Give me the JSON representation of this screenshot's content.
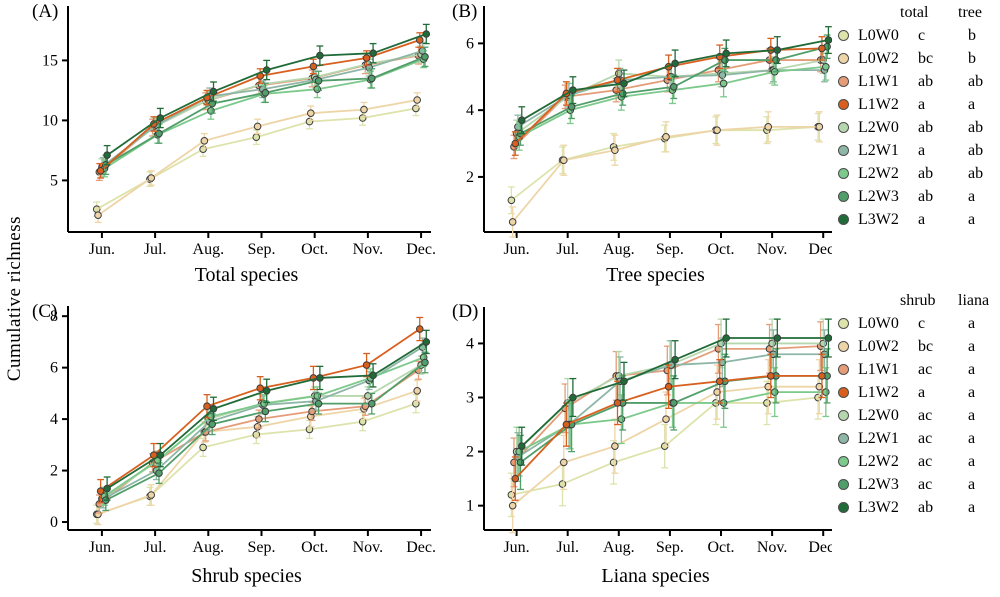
{
  "figure": {
    "y_axis_label": "Cumulative richness",
    "months": [
      "Jun.",
      "Jul.",
      "Aug.",
      "Sep.",
      "Oct.",
      "Nov.",
      "Dec."
    ],
    "treatments": [
      {
        "name": "L0W0",
        "color": "#dde3ab"
      },
      {
        "name": "L0W2",
        "color": "#eed5a7"
      },
      {
        "name": "L1W1",
        "color": "#e49d78"
      },
      {
        "name": "L1W2",
        "color": "#d8601f"
      },
      {
        "name": "L2W0",
        "color": "#b6d7ae"
      },
      {
        "name": "L2W1",
        "color": "#8db6a6"
      },
      {
        "name": "L2W2",
        "color": "#7cc98b"
      },
      {
        "name": "L2W3",
        "color": "#509e69"
      },
      {
        "name": "L3W2",
        "color": "#206b38"
      }
    ]
  },
  "chart_data": [
    {
      "type": "line",
      "panel": "(A)",
      "xlabel": "Total species",
      "ylabel": "Cumulative richness",
      "categories": [
        "Jun.",
        "Jul.",
        "Aug.",
        "Sep.",
        "Oct.",
        "Nov.",
        "Dec."
      ],
      "yticks": [
        5,
        10,
        15
      ],
      "ylim": [
        0.7,
        19.2
      ],
      "series": [
        {
          "name": "L0W0",
          "values": [
            2.6,
            5.1,
            7.6,
            8.6,
            9.9,
            10.2,
            11.0
          ],
          "err": 0.6
        },
        {
          "name": "L0W2",
          "values": [
            2.1,
            5.2,
            8.3,
            9.5,
            10.6,
            10.9,
            11.7
          ],
          "err": 0.6
        },
        {
          "name": "L1W1",
          "values": [
            5.7,
            9.4,
            11.6,
            12.9,
            13.5,
            14.6,
            15.4
          ],
          "err": 0.7
        },
        {
          "name": "L1W2",
          "values": [
            5.8,
            9.7,
            11.9,
            13.7,
            14.5,
            15.2,
            16.7
          ],
          "err": 0.6
        },
        {
          "name": "L2W0",
          "values": [
            6.1,
            9.5,
            11.7,
            13.0,
            13.6,
            14.7,
            15.5
          ],
          "err": 0.7
        },
        {
          "name": "L2W1",
          "values": [
            6.2,
            9.6,
            12.0,
            12.6,
            13.4,
            14.4,
            15.8
          ],
          "err": 0.7
        },
        {
          "name": "L2W2",
          "values": [
            6.0,
            8.8,
            10.8,
            12.2,
            12.6,
            13.4,
            15.1
          ],
          "err": 0.7
        },
        {
          "name": "L2W3",
          "values": [
            6.3,
            8.9,
            11.4,
            12.3,
            13.3,
            13.5,
            15.3
          ],
          "err": 0.8
        },
        {
          "name": "L3W2",
          "values": [
            7.1,
            10.2,
            12.4,
            14.2,
            15.4,
            15.6,
            17.2
          ],
          "err": 0.8
        }
      ]
    },
    {
      "type": "line",
      "panel": "(B)",
      "xlabel": "Tree species",
      "ylabel": "Cumulative richness",
      "categories": [
        "Jun.",
        "Jul.",
        "Aug.",
        "Sep.",
        "Oct.",
        "Nov.",
        "Dec."
      ],
      "yticks": [
        2,
        4,
        6
      ],
      "ylim": [
        0.35,
        7.0
      ],
      "series": [
        {
          "name": "L0W0",
          "values": [
            1.3,
            2.5,
            2.9,
            3.15,
            3.4,
            3.4,
            3.5
          ],
          "err": 0.4
        },
        {
          "name": "L0W2",
          "values": [
            0.65,
            2.5,
            2.8,
            3.2,
            3.4,
            3.5,
            3.5
          ],
          "err": 0.45
        },
        {
          "name": "L1W1",
          "values": [
            2.9,
            4.4,
            4.6,
            4.9,
            5.2,
            5.5,
            5.5
          ],
          "err": 0.35
        },
        {
          "name": "L1W2",
          "values": [
            3.0,
            4.5,
            4.9,
            5.3,
            5.6,
            5.8,
            5.85
          ],
          "err": 0.35
        },
        {
          "name": "L2W0",
          "values": [
            3.3,
            4.4,
            5.1,
            5.0,
            5.1,
            5.2,
            5.5
          ],
          "err": 0.4
        },
        {
          "name": "L2W1",
          "values": [
            3.5,
            4.45,
            4.9,
            5.0,
            5.05,
            5.2,
            5.2
          ],
          "err": 0.35
        },
        {
          "name": "L2W2",
          "values": [
            3.2,
            4.0,
            4.4,
            4.6,
            4.8,
            5.15,
            5.3
          ],
          "err": 0.4
        },
        {
          "name": "L2W3",
          "values": [
            3.3,
            4.1,
            4.5,
            4.7,
            5.5,
            5.5,
            5.9
          ],
          "err": 0.35
        },
        {
          "name": "L3W2",
          "values": [
            3.7,
            4.6,
            4.8,
            5.4,
            5.7,
            5.8,
            6.1
          ],
          "err": 0.4
        }
      ]
    },
    {
      "type": "line",
      "panel": "(C)",
      "xlabel": "Shrub species",
      "ylabel": "Cumulative richness",
      "categories": [
        "Jun.",
        "Jul.",
        "Aug.",
        "Sep.",
        "Oct.",
        "Nov.",
        "Dec."
      ],
      "yticks": [
        0,
        2,
        4,
        6,
        8
      ],
      "ylim": [
        -0.31,
        8.24
      ],
      "series": [
        {
          "name": "L0W0",
          "values": [
            0.3,
            1.0,
            2.9,
            3.4,
            3.6,
            3.9,
            4.6
          ],
          "err": 0.35
        },
        {
          "name": "L0W2",
          "values": [
            0.3,
            1.05,
            3.5,
            3.7,
            4.1,
            4.4,
            5.1
          ],
          "err": 0.4
        },
        {
          "name": "L1W1",
          "values": [
            0.7,
            2.3,
            3.5,
            4.0,
            4.3,
            4.5,
            5.9
          ],
          "err": 0.35
        },
        {
          "name": "L1W2",
          "values": [
            1.2,
            2.6,
            4.5,
            5.2,
            5.6,
            6.1,
            7.5
          ],
          "err": 0.45
        },
        {
          "name": "L2W0",
          "values": [
            0.9,
            2.3,
            4.0,
            4.6,
            4.9,
            4.9,
            6.1
          ],
          "err": 0.35
        },
        {
          "name": "L2W1",
          "values": [
            0.9,
            2.0,
            3.9,
            4.55,
            4.7,
            5.5,
            6.8
          ],
          "err": 0.35
        },
        {
          "name": "L2W2",
          "values": [
            1.0,
            2.4,
            4.1,
            4.6,
            4.9,
            5.6,
            6.4
          ],
          "err": 0.35
        },
        {
          "name": "L2W3",
          "values": [
            0.85,
            1.9,
            3.8,
            4.3,
            4.6,
            4.6,
            6.2
          ],
          "err": 0.4
        },
        {
          "name": "L3W2",
          "values": [
            1.3,
            2.6,
            4.4,
            5.1,
            5.6,
            5.7,
            7.0
          ],
          "err": 0.45
        }
      ]
    },
    {
      "type": "line",
      "panel": "(D)",
      "xlabel": "Liana species",
      "ylabel": "Cumulative richness",
      "categories": [
        "Jun.",
        "Jul.",
        "Aug.",
        "Sep.",
        "Oct.",
        "Nov.",
        "Dec."
      ],
      "yticks": [
        1,
        2,
        3,
        4
      ],
      "ylim": [
        0.55,
        4.6
      ],
      "series": [
        {
          "name": "L0W0",
          "values": [
            1.2,
            1.4,
            1.8,
            2.1,
            2.9,
            2.9,
            3.0
          ],
          "err": 0.4
        },
        {
          "name": "L0W2",
          "values": [
            1.0,
            1.8,
            2.1,
            2.6,
            3.1,
            3.2,
            3.2
          ],
          "err": 0.5
        },
        {
          "name": "L1W1",
          "values": [
            1.8,
            2.8,
            3.4,
            3.5,
            3.9,
            3.9,
            3.95
          ],
          "err": 0.45
        },
        {
          "name": "L1W2",
          "values": [
            1.5,
            2.5,
            2.9,
            3.2,
            3.3,
            3.4,
            3.4
          ],
          "err": 0.4
        },
        {
          "name": "L2W0",
          "values": [
            2.0,
            2.9,
            3.4,
            3.6,
            4.0,
            4.0,
            4.0
          ],
          "err": 0.45
        },
        {
          "name": "L2W1",
          "values": [
            1.9,
            2.5,
            3.3,
            3.6,
            3.65,
            3.8,
            3.8
          ],
          "err": 0.45
        },
        {
          "name": "L2W2",
          "values": [
            2.0,
            2.5,
            2.6,
            2.9,
            2.9,
            3.1,
            3.1
          ],
          "err": 0.45
        },
        {
          "name": "L2W3",
          "values": [
            1.8,
            2.5,
            2.9,
            2.9,
            3.3,
            3.4,
            3.4
          ],
          "err": 0.5
        },
        {
          "name": "L3W2",
          "values": [
            2.1,
            3.0,
            3.3,
            3.7,
            4.1,
            4.1,
            4.1
          ],
          "err": 0.35
        }
      ]
    }
  ],
  "legends": [
    {
      "columns": [
        "total",
        "tree"
      ],
      "rows": [
        {
          "name": "L0W0",
          "letters": [
            "c",
            "b"
          ]
        },
        {
          "name": "L0W2",
          "letters": [
            "bc",
            "b"
          ]
        },
        {
          "name": "L1W1",
          "letters": [
            "ab",
            "ab"
          ]
        },
        {
          "name": "L1W2",
          "letters": [
            "a",
            "a"
          ]
        },
        {
          "name": "L2W0",
          "letters": [
            "ab",
            "ab"
          ]
        },
        {
          "name": "L2W1",
          "letters": [
            "a",
            "ab"
          ]
        },
        {
          "name": "L2W2",
          "letters": [
            "ab",
            "ab"
          ]
        },
        {
          "name": "L2W3",
          "letters": [
            "ab",
            "a"
          ]
        },
        {
          "name": "L3W2",
          "letters": [
            "a",
            "a"
          ]
        }
      ]
    },
    {
      "columns": [
        "shrub",
        "liana"
      ],
      "rows": [
        {
          "name": "L0W0",
          "letters": [
            "c",
            "a"
          ]
        },
        {
          "name": "L0W2",
          "letters": [
            "bc",
            "a"
          ]
        },
        {
          "name": "L1W1",
          "letters": [
            "ac",
            "a"
          ]
        },
        {
          "name": "L1W2",
          "letters": [
            "a",
            "a"
          ]
        },
        {
          "name": "L2W0",
          "letters": [
            "ac",
            "a"
          ]
        },
        {
          "name": "L2W1",
          "letters": [
            "ac",
            "a"
          ]
        },
        {
          "name": "L2W2",
          "letters": [
            "ac",
            "a"
          ]
        },
        {
          "name": "L2W3",
          "letters": [
            "ac",
            "a"
          ]
        },
        {
          "name": "L3W2",
          "letters": [
            "ab",
            "a"
          ]
        }
      ]
    }
  ]
}
